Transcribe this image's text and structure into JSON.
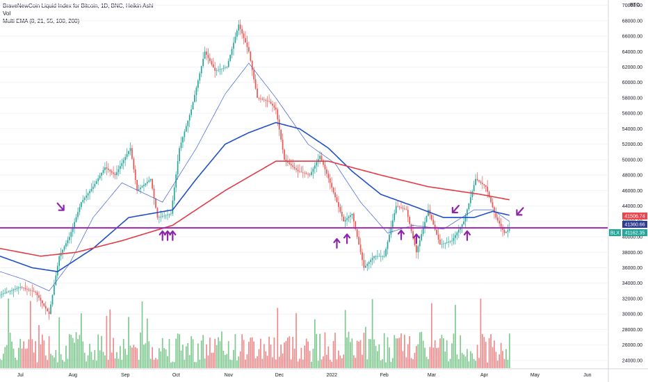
{
  "legend": {
    "title": "BraveNewCoin Liquid Index for Bitcoin, 1D, BNC, Heikin Ashi",
    "vol": "Vol",
    "ema": "Multi EMA (8, 21, 55, 100, 200)"
  },
  "axis": {
    "currency": "BTC",
    "y_ticks": [
      "70000.00",
      "68000.00",
      "66000.00",
      "64000.00",
      "62000.00",
      "60000.00",
      "58000.00",
      "56000.00",
      "54000.00",
      "52000.00",
      "50000.00",
      "48000.00",
      "46000.00",
      "44000.00",
      "42000.00",
      "40000.00",
      "38000.00",
      "36000.00",
      "34000.00",
      "32000.00",
      "30000.00",
      "28000.00",
      "26000.00",
      "24000.00"
    ],
    "y_tick_values": [
      70000,
      68000,
      66000,
      64000,
      62000,
      60000,
      58000,
      56000,
      54000,
      52000,
      50000,
      48000,
      46000,
      44000,
      42000,
      40000,
      38000,
      36000,
      34000,
      32000,
      30000,
      28000,
      26000,
      24000
    ],
    "x_ticks": [
      "Jul",
      "Aug",
      "Sep",
      "Oct",
      "Nov",
      "Dec",
      "2022",
      "Feb",
      "Mar",
      "Apr",
      "May",
      "Jun"
    ]
  },
  "price_tags": [
    {
      "text": "41506.74",
      "value": 41506.74,
      "color": "#e8474e"
    },
    {
      "text": "41360.66",
      "value": 41360.66,
      "color": "#2f3b8f"
    },
    {
      "text": "41162.35",
      "value": 41162.35,
      "color": "#26a69a",
      "prefix": "BLX"
    }
  ],
  "horizontal_line": {
    "value": 41162.35,
    "color": "#9c27b0"
  },
  "colors": {
    "up": "#26a69a",
    "down": "#ef5350",
    "vol_up": "#7fc88f",
    "vol_down": "#f08a8a",
    "ema_fast": "#3b5bdb",
    "ema_mid": "#1e4fc4",
    "ema_slow": "#e23b45",
    "arrow": "#8e24aa",
    "grid": "#f0f3fa"
  },
  "chart_data": {
    "type": "candlestick",
    "style": "Heikin Ashi",
    "x_domain": [
      "2021-06-21",
      "2022-06-15"
    ],
    "y_range": [
      23000,
      70500
    ],
    "grid": true,
    "anchors": [
      [
        "2021-06-21",
        32500
      ],
      [
        "2021-07-03",
        33500
      ],
      [
        "2021-07-12",
        32800
      ],
      [
        "2021-07-20",
        30000
      ],
      [
        "2021-07-26",
        37500
      ],
      [
        "2021-08-01",
        40000
      ],
      [
        "2021-08-08",
        44500
      ],
      [
        "2021-08-15",
        46500
      ],
      [
        "2021-08-22",
        49000
      ],
      [
        "2021-08-28",
        48000
      ],
      [
        "2021-09-06",
        51500
      ],
      [
        "2021-09-10",
        46000
      ],
      [
        "2021-09-18",
        47500
      ],
      [
        "2021-09-22",
        42500
      ],
      [
        "2021-09-30",
        43000
      ],
      [
        "2021-10-05",
        51500
      ],
      [
        "2021-10-12",
        56500
      ],
      [
        "2021-10-20",
        64000
      ],
      [
        "2021-10-26",
        61500
      ],
      [
        "2021-11-02",
        62000
      ],
      [
        "2021-11-09",
        67500
      ],
      [
        "2021-11-15",
        64000
      ],
      [
        "2021-11-20",
        58000
      ],
      [
        "2021-11-27",
        57500
      ],
      [
        "2021-12-01",
        56500
      ],
      [
        "2021-12-06",
        50000
      ],
      [
        "2021-12-14",
        48500
      ],
      [
        "2021-12-21",
        48000
      ],
      [
        "2021-12-27",
        50500
      ],
      [
        "2022-01-02",
        47000
      ],
      [
        "2022-01-10",
        42000
      ],
      [
        "2022-01-15",
        43000
      ],
      [
        "2022-01-22",
        36000
      ],
      [
        "2022-01-28",
        37500
      ],
      [
        "2022-02-03",
        37500
      ],
      [
        "2022-02-10",
        44000
      ],
      [
        "2022-02-16",
        43500
      ],
      [
        "2022-02-22",
        38000
      ],
      [
        "2022-03-01",
        43500
      ],
      [
        "2022-03-08",
        39000
      ],
      [
        "2022-03-15",
        39500
      ],
      [
        "2022-03-22",
        42000
      ],
      [
        "2022-03-29",
        47500
      ],
      [
        "2022-04-04",
        46500
      ],
      [
        "2022-04-10",
        42500
      ],
      [
        "2022-04-15",
        40500
      ],
      [
        "2022-04-18",
        41000
      ]
    ],
    "ema_21": [
      [
        "2021-06-21",
        35500
      ],
      [
        "2021-07-05",
        34500
      ],
      [
        "2021-07-20",
        33000
      ],
      [
        "2021-08-01",
        36500
      ],
      [
        "2021-08-15",
        42500
      ],
      [
        "2021-09-01",
        47000
      ],
      [
        "2021-09-25",
        44500
      ],
      [
        "2021-10-15",
        51500
      ],
      [
        "2021-11-01",
        58500
      ],
      [
        "2021-11-15",
        62500
      ],
      [
        "2021-12-01",
        58000
      ],
      [
        "2021-12-20",
        52000
      ],
      [
        "2022-01-05",
        49500
      ],
      [
        "2022-01-20",
        44500
      ],
      [
        "2022-02-05",
        40500
      ],
      [
        "2022-02-20",
        41500
      ],
      [
        "2022-03-10",
        41000
      ],
      [
        "2022-03-28",
        43500
      ],
      [
        "2022-04-08",
        43500
      ],
      [
        "2022-04-18",
        42000
      ]
    ],
    "ema_55": [
      [
        "2021-06-21",
        37500
      ],
      [
        "2021-07-10",
        36000
      ],
      [
        "2021-07-25",
        35500
      ],
      [
        "2021-08-15",
        38500
      ],
      [
        "2021-09-05",
        42500
      ],
      [
        "2021-10-01",
        43500
      ],
      [
        "2021-10-15",
        47500
      ],
      [
        "2021-11-01",
        52000
      ],
      [
        "2021-11-15",
        53500
      ],
      [
        "2021-12-01",
        54800
      ],
      [
        "2021-12-15",
        54000
      ],
      [
        "2022-01-01",
        51500
      ],
      [
        "2022-01-15",
        48500
      ],
      [
        "2022-02-01",
        45500
      ],
      [
        "2022-02-20",
        44000
      ],
      [
        "2022-03-10",
        42500
      ],
      [
        "2022-03-28",
        42500
      ],
      [
        "2022-04-08",
        43300
      ],
      [
        "2022-04-18",
        42800
      ]
    ],
    "ema_200": [
      [
        "2021-06-21",
        38500
      ],
      [
        "2021-07-15",
        37500
      ],
      [
        "2021-08-05",
        38000
      ],
      [
        "2021-09-01",
        39500
      ],
      [
        "2021-10-01",
        41500
      ],
      [
        "2021-11-01",
        46000
      ],
      [
        "2021-12-01",
        49800
      ],
      [
        "2022-01-01",
        49800
      ],
      [
        "2022-02-01",
        48000
      ],
      [
        "2022-03-01",
        46500
      ],
      [
        "2022-04-01",
        45500
      ],
      [
        "2022-04-18",
        44800
      ]
    ],
    "arrows": [
      {
        "date": "2021-07-27",
        "value": 43900,
        "dir": "down-right"
      },
      {
        "date": "2021-09-25",
        "value": 40200,
        "dir": "up"
      },
      {
        "date": "2021-09-28",
        "value": 40200,
        "dir": "up"
      },
      {
        "date": "2021-10-01",
        "value": 40200,
        "dir": "up"
      },
      {
        "date": "2022-01-06",
        "value": 39200,
        "dir": "up"
      },
      {
        "date": "2022-01-12",
        "value": 39800,
        "dir": "up"
      },
      {
        "date": "2022-02-13",
        "value": 40300,
        "dir": "up"
      },
      {
        "date": "2022-02-22",
        "value": 39800,
        "dir": "up"
      },
      {
        "date": "2022-03-17",
        "value": 43600,
        "dir": "down-left"
      },
      {
        "date": "2022-03-24",
        "value": 40200,
        "dir": "up"
      },
      {
        "date": "2022-04-24",
        "value": 43300,
        "dir": "down-left"
      }
    ]
  }
}
